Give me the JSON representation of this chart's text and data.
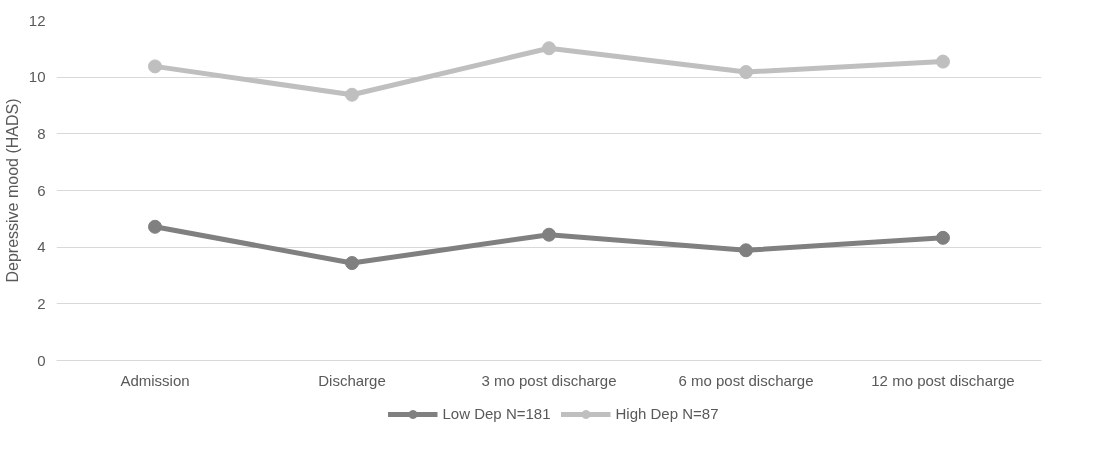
{
  "chart_data": {
    "type": "line",
    "ylabel": "Depressive mood (HADS)",
    "categories": [
      "Admission",
      "Discharge",
      "3 mo post discharge",
      "6 mo post discharge",
      "12 mo post discharge"
    ],
    "series": [
      {
        "name": "Low Dep N=181",
        "color": "#808080",
        "values": [
          4.72,
          3.44,
          4.44,
          3.89,
          4.33
        ]
      },
      {
        "name": "High Dep N=87",
        "color": "#bfbfbf",
        "values": [
          10.38,
          9.38,
          11.02,
          10.18,
          10.55
        ]
      }
    ],
    "ylim": [
      0,
      12
    ],
    "yticks": [
      0,
      2,
      4,
      6,
      8,
      10,
      12
    ],
    "grid": "y",
    "legend": "bottom",
    "marker": "circle",
    "line_style": "solid"
  }
}
